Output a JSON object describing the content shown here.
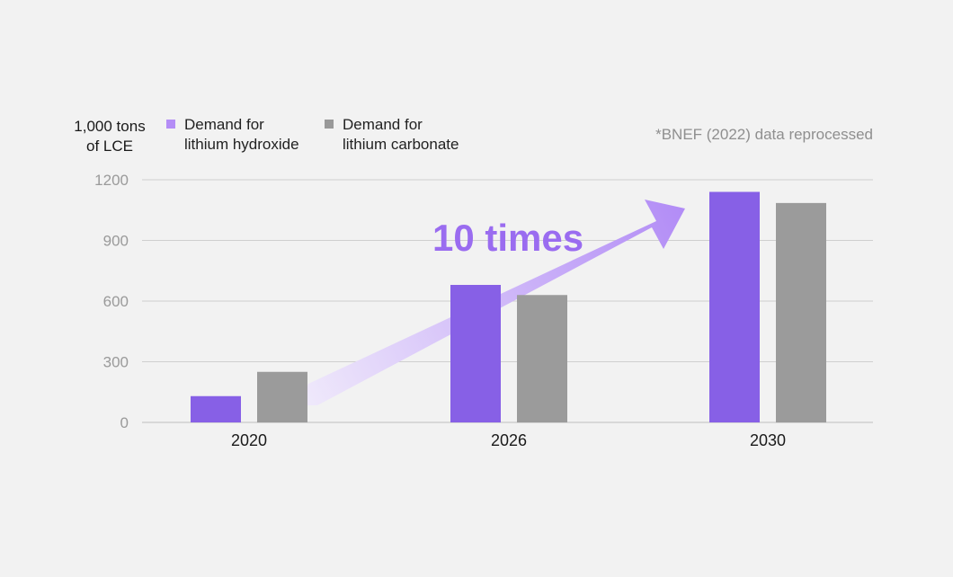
{
  "chart_data": {
    "type": "bar",
    "unit_label_lines": [
      "1,000 tons",
      "of LCE"
    ],
    "source_note": "*BNEF (2022) data reprocessed",
    "annotation": "10 times",
    "categories": [
      "2020",
      "2026",
      "2030"
    ],
    "series": [
      {
        "name_lines": [
          "Demand for",
          "lithium hydroxide"
        ],
        "color": "#8760e6",
        "legend_color": "#b48df6",
        "values": [
          130,
          680,
          1140
        ]
      },
      {
        "name_lines": [
          "Demand for",
          "lithium carbonate"
        ],
        "color": "#9b9b9b",
        "legend_color": "#999999",
        "values": [
          250,
          630,
          1085
        ]
      }
    ],
    "yticks": [
      0,
      300,
      600,
      900,
      1200
    ],
    "ylim": [
      0,
      1200
    ],
    "grid": true,
    "legend_position": "top-left",
    "colors": {
      "grid": "#cfcfcf",
      "axis": "#bdbdbd",
      "annotation": "#9a6cf0",
      "arrow_light": "#f0eafb",
      "arrow_dark": "#b28cf6"
    }
  }
}
